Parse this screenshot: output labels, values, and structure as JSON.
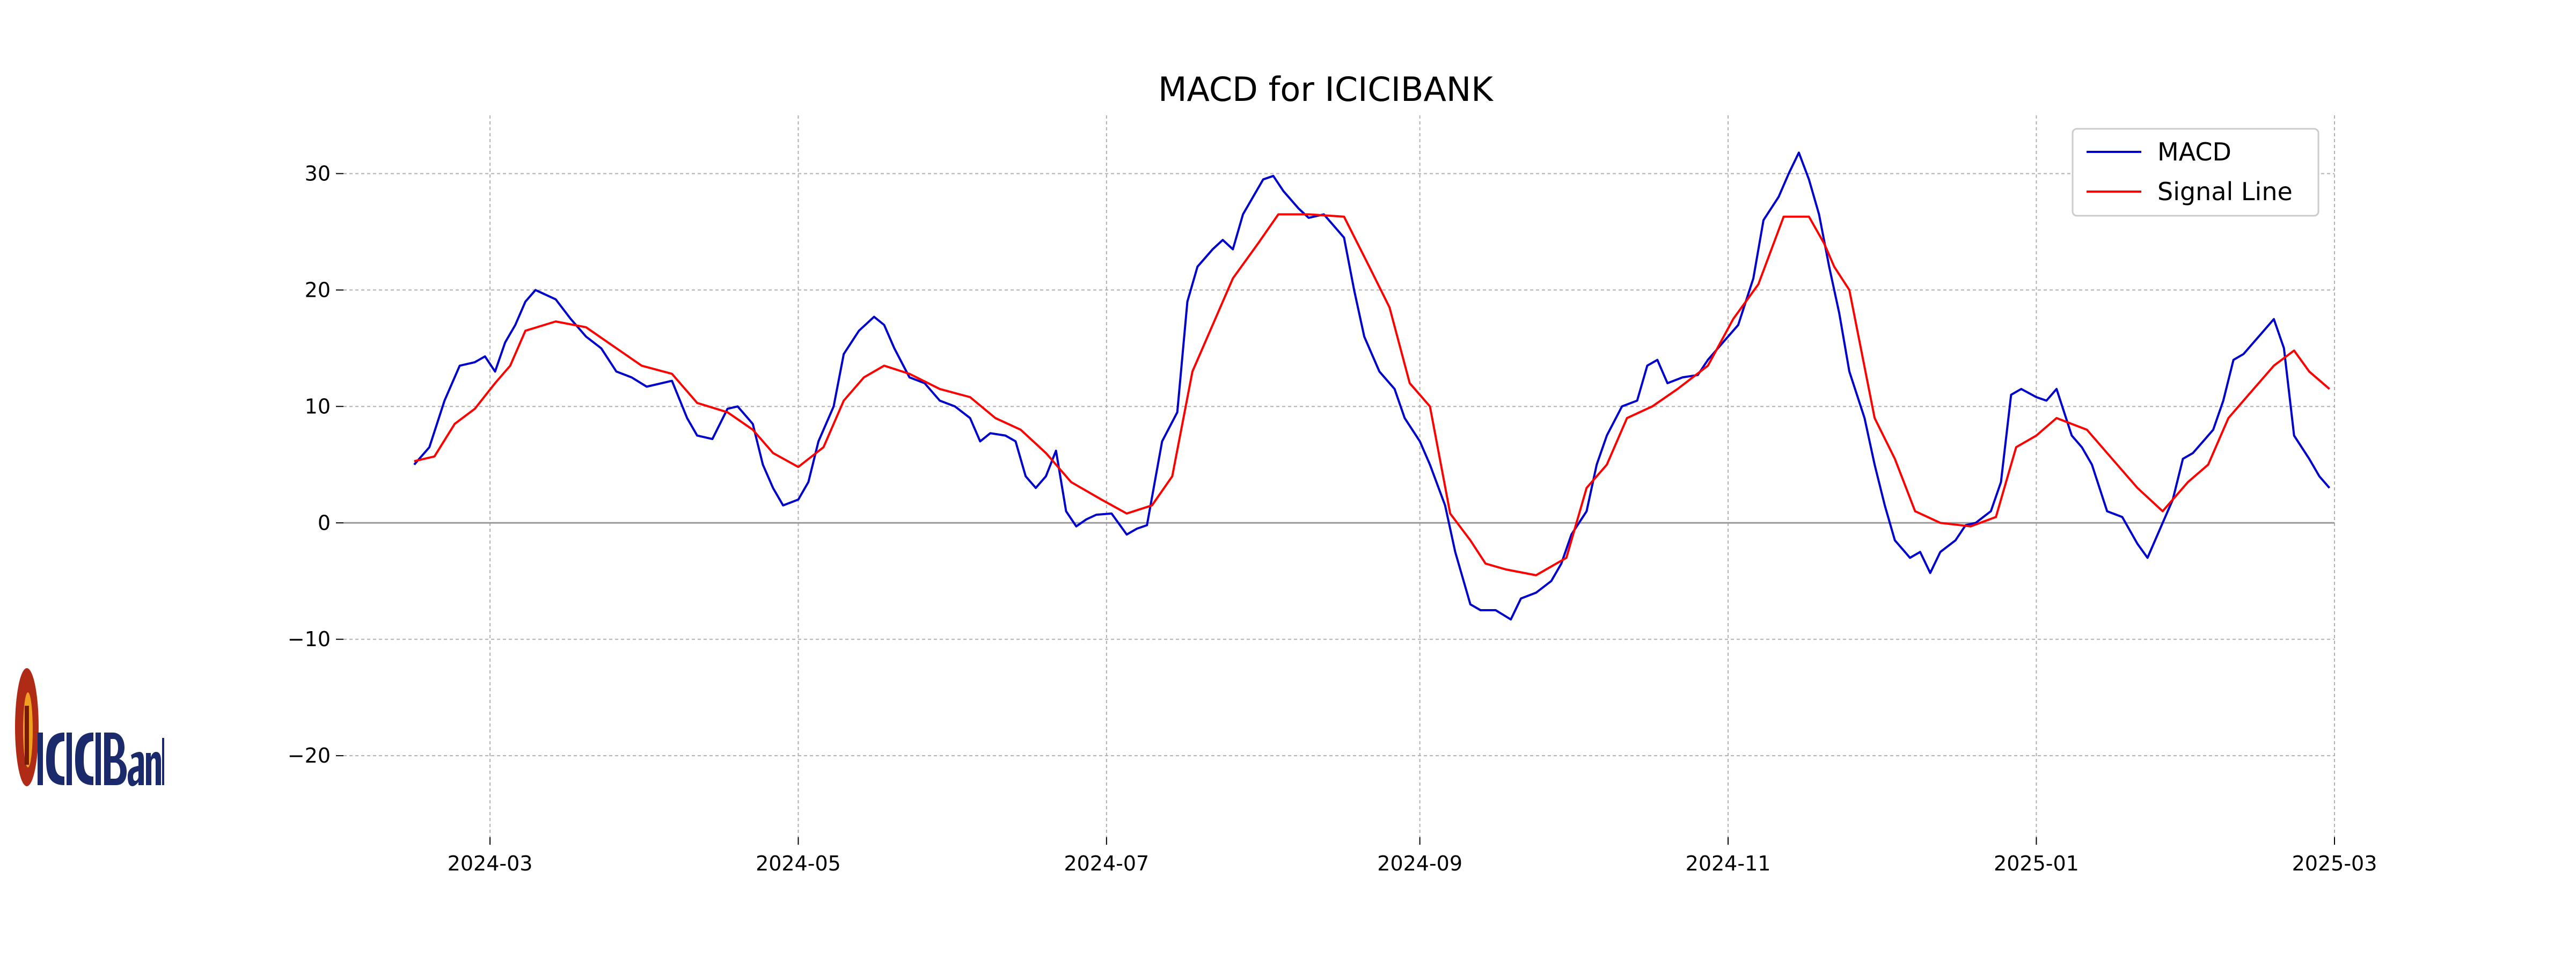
{
  "chart_data": {
    "type": "line",
    "title": "MACD for ICICIBANK",
    "xlabel": "",
    "ylabel": "",
    "x_ticks": [
      "2024-03",
      "2024-05",
      "2024-07",
      "2024-09",
      "2024-11",
      "2025-01",
      "2025-03"
    ],
    "y_ticks": [
      "30",
      "20",
      "10",
      "0",
      "−10",
      "−20"
    ],
    "xlim": [
      "2024-02-01",
      "2025-03-01"
    ],
    "ylim": [
      -27,
      35
    ],
    "grid": true,
    "zero_line": true,
    "legend": "top-right",
    "series": [
      {
        "name": "MACD",
        "color": "#0000cc",
        "points": [
          [
            "2024-02-15",
            5.0
          ],
          [
            "2024-02-18",
            6.5
          ],
          [
            "2024-02-21",
            10.5
          ],
          [
            "2024-02-24",
            13.5
          ],
          [
            "2024-02-27",
            13.8
          ],
          [
            "2024-02-29",
            14.3
          ],
          [
            "2024-03-02",
            13.0
          ],
          [
            "2024-03-04",
            15.5
          ],
          [
            "2024-03-06",
            17.0
          ],
          [
            "2024-03-08",
            19.0
          ],
          [
            "2024-03-10",
            20.0
          ],
          [
            "2024-03-14",
            19.2
          ],
          [
            "2024-03-17",
            17.5
          ],
          [
            "2024-03-20",
            16.0
          ],
          [
            "2024-03-23",
            15.0
          ],
          [
            "2024-03-26",
            13.0
          ],
          [
            "2024-03-29",
            12.5
          ],
          [
            "2024-04-01",
            11.7
          ],
          [
            "2024-04-06",
            12.2
          ],
          [
            "2024-04-09",
            9.0
          ],
          [
            "2024-04-11",
            7.5
          ],
          [
            "2024-04-14",
            7.2
          ],
          [
            "2024-04-17",
            9.8
          ],
          [
            "2024-04-19",
            10.0
          ],
          [
            "2024-04-22",
            8.5
          ],
          [
            "2024-04-24",
            5.0
          ],
          [
            "2024-04-26",
            3.0
          ],
          [
            "2024-04-28",
            1.5
          ],
          [
            "2024-05-01",
            2.0
          ],
          [
            "2024-05-03",
            3.5
          ],
          [
            "2024-05-05",
            7.0
          ],
          [
            "2024-05-08",
            10.0
          ],
          [
            "2024-05-10",
            14.5
          ],
          [
            "2024-05-13",
            16.5
          ],
          [
            "2024-05-16",
            17.7
          ],
          [
            "2024-05-18",
            17.0
          ],
          [
            "2024-05-20",
            15.0
          ],
          [
            "2024-05-23",
            12.5
          ],
          [
            "2024-05-26",
            12.0
          ],
          [
            "2024-05-29",
            10.5
          ],
          [
            "2024-06-01",
            10.0
          ],
          [
            "2024-06-04",
            9.0
          ],
          [
            "2024-06-06",
            7.0
          ],
          [
            "2024-06-08",
            7.7
          ],
          [
            "2024-06-11",
            7.5
          ],
          [
            "2024-06-13",
            7.0
          ],
          [
            "2024-06-15",
            4.0
          ],
          [
            "2024-06-17",
            3.0
          ],
          [
            "2024-06-19",
            4.0
          ],
          [
            "2024-06-21",
            6.2
          ],
          [
            "2024-06-23",
            1.0
          ],
          [
            "2024-06-25",
            -0.3
          ],
          [
            "2024-06-27",
            0.3
          ],
          [
            "2024-06-29",
            0.7
          ],
          [
            "2024-07-02",
            0.8
          ],
          [
            "2024-07-05",
            -1.0
          ],
          [
            "2024-07-07",
            -0.5
          ],
          [
            "2024-07-09",
            -0.2
          ],
          [
            "2024-07-12",
            7.0
          ],
          [
            "2024-07-15",
            9.5
          ],
          [
            "2024-07-17",
            19.0
          ],
          [
            "2024-07-19",
            22.0
          ],
          [
            "2024-07-22",
            23.5
          ],
          [
            "2024-07-24",
            24.3
          ],
          [
            "2024-07-26",
            23.5
          ],
          [
            "2024-07-28",
            26.5
          ],
          [
            "2024-07-30",
            28.0
          ],
          [
            "2024-08-01",
            29.5
          ],
          [
            "2024-08-03",
            29.8
          ],
          [
            "2024-08-05",
            28.5
          ],
          [
            "2024-08-08",
            27.0
          ],
          [
            "2024-08-10",
            26.2
          ],
          [
            "2024-08-13",
            26.5
          ],
          [
            "2024-08-15",
            25.5
          ],
          [
            "2024-08-17",
            24.5
          ],
          [
            "2024-08-19",
            20.0
          ],
          [
            "2024-08-21",
            16.0
          ],
          [
            "2024-08-24",
            13.0
          ],
          [
            "2024-08-27",
            11.5
          ],
          [
            "2024-08-29",
            9.0
          ],
          [
            "2024-09-01",
            7.0
          ],
          [
            "2024-09-03",
            5.0
          ],
          [
            "2024-09-06",
            1.5
          ],
          [
            "2024-09-08",
            -2.5
          ],
          [
            "2024-09-11",
            -7.0
          ],
          [
            "2024-09-13",
            -7.5
          ],
          [
            "2024-09-16",
            -7.5
          ],
          [
            "2024-09-19",
            -8.3
          ],
          [
            "2024-09-21",
            -6.5
          ],
          [
            "2024-09-24",
            -6.0
          ],
          [
            "2024-09-27",
            -5.0
          ],
          [
            "2024-09-29",
            -3.5
          ],
          [
            "2024-10-01",
            -1.0
          ],
          [
            "2024-10-04",
            1.0
          ],
          [
            "2024-10-06",
            5.0
          ],
          [
            "2024-10-08",
            7.5
          ],
          [
            "2024-10-11",
            10.0
          ],
          [
            "2024-10-14",
            10.5
          ],
          [
            "2024-10-16",
            13.5
          ],
          [
            "2024-10-18",
            14.0
          ],
          [
            "2024-10-20",
            12.0
          ],
          [
            "2024-10-23",
            12.5
          ],
          [
            "2024-10-26",
            12.7
          ],
          [
            "2024-10-28",
            14.0
          ],
          [
            "2024-10-31",
            15.5
          ],
          [
            "2024-11-03",
            17.0
          ],
          [
            "2024-11-06",
            21.0
          ],
          [
            "2024-11-08",
            26.0
          ],
          [
            "2024-11-11",
            28.0
          ],
          [
            "2024-11-13",
            30.0
          ],
          [
            "2024-11-15",
            31.8
          ],
          [
            "2024-11-17",
            29.5
          ],
          [
            "2024-11-19",
            26.5
          ],
          [
            "2024-11-21",
            22.0
          ],
          [
            "2024-11-23",
            18.0
          ],
          [
            "2024-11-25",
            13.0
          ],
          [
            "2024-11-28",
            9.0
          ],
          [
            "2024-11-30",
            5.0
          ],
          [
            "2024-12-02",
            1.5
          ],
          [
            "2024-12-04",
            -1.5
          ],
          [
            "2024-12-07",
            -3.0
          ],
          [
            "2024-12-09",
            -2.5
          ],
          [
            "2024-12-11",
            -4.3
          ],
          [
            "2024-12-13",
            -2.5
          ],
          [
            "2024-12-16",
            -1.5
          ],
          [
            "2024-12-18",
            -0.2
          ],
          [
            "2024-12-20",
            0.0
          ],
          [
            "2024-12-23",
            1.0
          ],
          [
            "2024-12-25",
            3.5
          ],
          [
            "2024-12-27",
            11.0
          ],
          [
            "2024-12-29",
            11.5
          ],
          [
            "2025-01-01",
            10.8
          ],
          [
            "2025-01-03",
            10.5
          ],
          [
            "2025-01-05",
            11.5
          ],
          [
            "2025-01-08",
            7.5
          ],
          [
            "2025-01-10",
            6.5
          ],
          [
            "2025-01-12",
            5.0
          ],
          [
            "2025-01-15",
            1.0
          ],
          [
            "2025-01-18",
            0.5
          ],
          [
            "2025-01-21",
            -1.8
          ],
          [
            "2025-01-23",
            -3.0
          ],
          [
            "2025-01-26",
            0.0
          ],
          [
            "2025-01-28",
            2.0
          ],
          [
            "2025-01-30",
            5.5
          ],
          [
            "2025-02-01",
            6.0
          ],
          [
            "2025-02-03",
            7.0
          ],
          [
            "2025-02-05",
            8.0
          ],
          [
            "2025-02-07",
            10.5
          ],
          [
            "2025-02-09",
            14.0
          ],
          [
            "2025-02-11",
            14.5
          ],
          [
            "2025-02-13",
            15.5
          ],
          [
            "2025-02-15",
            16.5
          ],
          [
            "2025-02-17",
            17.5
          ],
          [
            "2025-02-19",
            15.0
          ],
          [
            "2025-02-21",
            7.5
          ],
          [
            "2025-02-24",
            5.5
          ],
          [
            "2025-02-26",
            4.0
          ],
          [
            "2025-02-28",
            3.0
          ]
        ]
      },
      {
        "name": "Signal Line",
        "color": "#ff0000",
        "points": [
          [
            "2024-02-15",
            5.3
          ],
          [
            "2024-02-19",
            5.7
          ],
          [
            "2024-02-23",
            8.5
          ],
          [
            "2024-02-27",
            9.8
          ],
          [
            "2024-03-02",
            12.0
          ],
          [
            "2024-03-05",
            13.5
          ],
          [
            "2024-03-08",
            16.5
          ],
          [
            "2024-03-14",
            17.3
          ],
          [
            "2024-03-20",
            16.8
          ],
          [
            "2024-03-26",
            15.0
          ],
          [
            "2024-03-31",
            13.5
          ],
          [
            "2024-04-06",
            12.8
          ],
          [
            "2024-04-11",
            10.3
          ],
          [
            "2024-04-17",
            9.5
          ],
          [
            "2024-04-22",
            8.0
          ],
          [
            "2024-04-26",
            6.0
          ],
          [
            "2024-05-01",
            4.8
          ],
          [
            "2024-05-06",
            6.5
          ],
          [
            "2024-05-10",
            10.5
          ],
          [
            "2024-05-14",
            12.5
          ],
          [
            "2024-05-18",
            13.5
          ],
          [
            "2024-05-23",
            12.8
          ],
          [
            "2024-05-29",
            11.5
          ],
          [
            "2024-06-04",
            10.8
          ],
          [
            "2024-06-09",
            9.0
          ],
          [
            "2024-06-14",
            8.0
          ],
          [
            "2024-06-19",
            6.0
          ],
          [
            "2024-06-24",
            3.5
          ],
          [
            "2024-06-30",
            2.0
          ],
          [
            "2024-07-05",
            0.8
          ],
          [
            "2024-07-10",
            1.5
          ],
          [
            "2024-07-14",
            4.0
          ],
          [
            "2024-07-18",
            13.0
          ],
          [
            "2024-07-22",
            17.0
          ],
          [
            "2024-07-26",
            21.0
          ],
          [
            "2024-07-31",
            24.0
          ],
          [
            "2024-08-04",
            26.5
          ],
          [
            "2024-08-10",
            26.5
          ],
          [
            "2024-08-17",
            26.3
          ],
          [
            "2024-08-22",
            22.0
          ],
          [
            "2024-08-26",
            18.5
          ],
          [
            "2024-08-30",
            12.0
          ],
          [
            "2024-09-03",
            10.0
          ],
          [
            "2024-09-07",
            0.8
          ],
          [
            "2024-09-11",
            -1.5
          ],
          [
            "2024-09-14",
            -3.5
          ],
          [
            "2024-09-18",
            -4.0
          ],
          [
            "2024-09-24",
            -4.5
          ],
          [
            "2024-09-30",
            -3.0
          ],
          [
            "2024-10-04",
            3.0
          ],
          [
            "2024-10-08",
            5.0
          ],
          [
            "2024-10-12",
            9.0
          ],
          [
            "2024-10-17",
            10.0
          ],
          [
            "2024-10-22",
            11.5
          ],
          [
            "2024-10-28",
            13.5
          ],
          [
            "2024-11-02",
            17.5
          ],
          [
            "2024-11-07",
            20.5
          ],
          [
            "2024-11-12",
            26.3
          ],
          [
            "2024-11-17",
            26.3
          ],
          [
            "2024-11-20",
            24.0
          ],
          [
            "2024-11-22",
            22.0
          ],
          [
            "2024-11-25",
            20.0
          ],
          [
            "2024-11-30",
            9.0
          ],
          [
            "2024-12-04",
            5.5
          ],
          [
            "2024-12-08",
            1.0
          ],
          [
            "2024-12-13",
            0.0
          ],
          [
            "2024-12-19",
            -0.3
          ],
          [
            "2024-12-24",
            0.5
          ],
          [
            "2024-12-28",
            6.5
          ],
          [
            "2025-01-01",
            7.5
          ],
          [
            "2025-01-05",
            9.0
          ],
          [
            "2025-01-11",
            8.0
          ],
          [
            "2025-01-16",
            5.5
          ],
          [
            "2025-01-21",
            3.0
          ],
          [
            "2025-01-26",
            1.0
          ],
          [
            "2025-01-31",
            3.5
          ],
          [
            "2025-02-04",
            5.0
          ],
          [
            "2025-02-08",
            9.0
          ],
          [
            "2025-02-12",
            11.0
          ],
          [
            "2025-02-17",
            13.5
          ],
          [
            "2025-02-21",
            14.8
          ],
          [
            "2025-02-24",
            13.0
          ],
          [
            "2025-02-28",
            11.5
          ]
        ]
      }
    ]
  },
  "logo": {
    "alt_text": "ICICI Bank"
  }
}
